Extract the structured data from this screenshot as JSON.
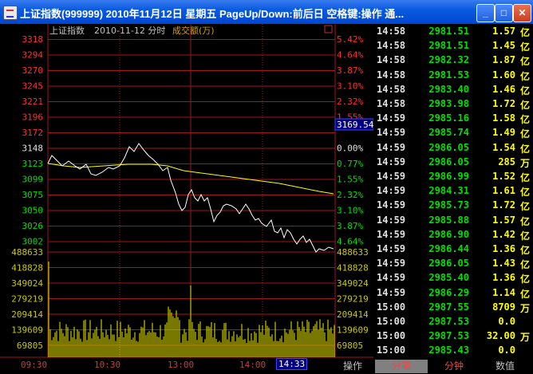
{
  "window": {
    "title": "上证指数(999999) 2010年11月12日 星期五 PageUp/Down:前后日 空格键:操作 通...",
    "buttons": {
      "minimize": "_",
      "maximize": "□",
      "close": "✕"
    }
  },
  "chart": {
    "header": {
      "index_name": "上证指数",
      "date_label": "2010-11-12 分时",
      "volume_label": "成交额(万)"
    },
    "price_labels": [
      "3318",
      "3294",
      "3270",
      "3245",
      "3221",
      "3196",
      "3172",
      "3148",
      "3123",
      "3099",
      "3075",
      "3050",
      "3026",
      "3002"
    ],
    "pct_labels": [
      "5.42%",
      "4.64%",
      "3.87%",
      "3.10%",
      "2.32%",
      "1.55%",
      "",
      "0.00%",
      "0.77%",
      "1.55%",
      "2.32%",
      "3.10%",
      "3.87%",
      "4.64%"
    ],
    "current_price_tag": "3169.54",
    "volume_labels": [
      "488633",
      "418828",
      "349024",
      "279219",
      "209414",
      "139609",
      "69805"
    ],
    "time_labels": [
      "09:30",
      "10:30",
      "13:00",
      "14:00"
    ],
    "cursor_time": "14:33",
    "colors": {
      "up": "#ff3030",
      "down": "#00e000",
      "grid": "#a01818",
      "price_line": "#ffffff",
      "avg_line": "#ffff00",
      "volume": "#c8c800"
    }
  },
  "tabs": [
    "操作",
    "分笔",
    "分钟",
    "数值"
  ],
  "ticks": [
    {
      "time": "14:58",
      "price": "2981.51",
      "vol": "1.57",
      "unit": "亿",
      "color": "green"
    },
    {
      "time": "14:58",
      "price": "2981.51",
      "vol": "1.45",
      "unit": "亿",
      "color": "green"
    },
    {
      "time": "14:58",
      "price": "2982.32",
      "vol": "1.87",
      "unit": "亿",
      "color": "green"
    },
    {
      "time": "14:58",
      "price": "2981.53",
      "vol": "1.60",
      "unit": "亿",
      "color": "green"
    },
    {
      "time": "14:58",
      "price": "2983.40",
      "vol": "1.46",
      "unit": "亿",
      "color": "green"
    },
    {
      "time": "14:58",
      "price": "2983.98",
      "vol": "1.72",
      "unit": "亿",
      "color": "green"
    },
    {
      "time": "14:59",
      "price": "2985.16",
      "vol": "1.58",
      "unit": "亿",
      "color": "green"
    },
    {
      "time": "14:59",
      "price": "2985.74",
      "vol": "1.49",
      "unit": "亿",
      "color": "green"
    },
    {
      "time": "14:59",
      "price": "2986.05",
      "vol": "1.54",
      "unit": "亿",
      "color": "green"
    },
    {
      "time": "14:59",
      "price": "2986.05",
      "vol": "285",
      "unit": "万",
      "color": "green"
    },
    {
      "time": "14:59",
      "price": "2986.99",
      "vol": "1.52",
      "unit": "亿",
      "color": "green"
    },
    {
      "time": "14:59",
      "price": "2984.31",
      "vol": "1.61",
      "unit": "亿",
      "color": "green"
    },
    {
      "time": "14:59",
      "price": "2985.73",
      "vol": "1.72",
      "unit": "亿",
      "color": "green"
    },
    {
      "time": "14:59",
      "price": "2985.88",
      "vol": "1.57",
      "unit": "亿",
      "color": "green"
    },
    {
      "time": "14:59",
      "price": "2986.90",
      "vol": "1.42",
      "unit": "亿",
      "color": "green"
    },
    {
      "time": "14:59",
      "price": "2986.44",
      "vol": "1.36",
      "unit": "亿",
      "color": "green"
    },
    {
      "time": "14:59",
      "price": "2986.05",
      "vol": "1.43",
      "unit": "亿",
      "color": "green"
    },
    {
      "time": "14:59",
      "price": "2985.40",
      "vol": "1.36",
      "unit": "亿",
      "color": "green"
    },
    {
      "time": "14:59",
      "price": "2986.29",
      "vol": "1.14",
      "unit": "亿",
      "color": "green"
    },
    {
      "time": "15:00",
      "price": "2987.55",
      "vol": "8709",
      "unit": "万",
      "color": "green"
    },
    {
      "time": "15:00",
      "price": "2987.53",
      "vol": "0.0",
      "unit": "",
      "color": "green"
    },
    {
      "time": "15:00",
      "price": "2987.53",
      "vol": "32.00",
      "unit": "万",
      "color": "green"
    },
    {
      "time": "15:00",
      "price": "2985.43",
      "vol": "0.0",
      "unit": "",
      "color": "green"
    }
  ]
}
